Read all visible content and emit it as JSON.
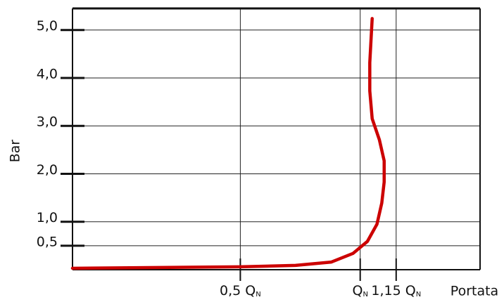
{
  "chart_data": {
    "type": "line",
    "y_label": "Bar",
    "x_label": "Portata",
    "x": [
      -0.2,
      0.5,
      0.73,
      0.88,
      0.97,
      1.03,
      1.07,
      1.09,
      1.1,
      1.1,
      1.08,
      1.05,
      1.04,
      1.04,
      1.05
    ],
    "series": [
      {
        "color": "#cc0000",
        "values": [
          0.03,
          0.06,
          0.09,
          0.16,
          0.34,
          0.59,
          0.95,
          1.39,
          1.83,
          2.27,
          2.71,
          3.15,
          3.73,
          4.32,
          5.24
        ]
      }
    ],
    "xlim": [
      -0.2,
      1.5
    ],
    "xticks": [
      {
        "value": 0.5,
        "label": "0,5 Q",
        "sub": "N"
      },
      {
        "value": 1,
        "label": "Q",
        "sub": "N"
      },
      {
        "value": 1.15,
        "label": "1,15 Q",
        "sub": "N"
      }
    ],
    "ylim": [
      0,
      5.45
    ],
    "yticks": [
      {
        "value": 0.5,
        "label": "0,5"
      },
      {
        "value": 1,
        "label": "1,0"
      },
      {
        "value": 2,
        "label": "2,0"
      },
      {
        "value": 3,
        "label": "3,0"
      },
      {
        "value": 4,
        "label": "4,0"
      },
      {
        "value": 5,
        "label": "5,0"
      }
    ],
    "grid": true
  }
}
